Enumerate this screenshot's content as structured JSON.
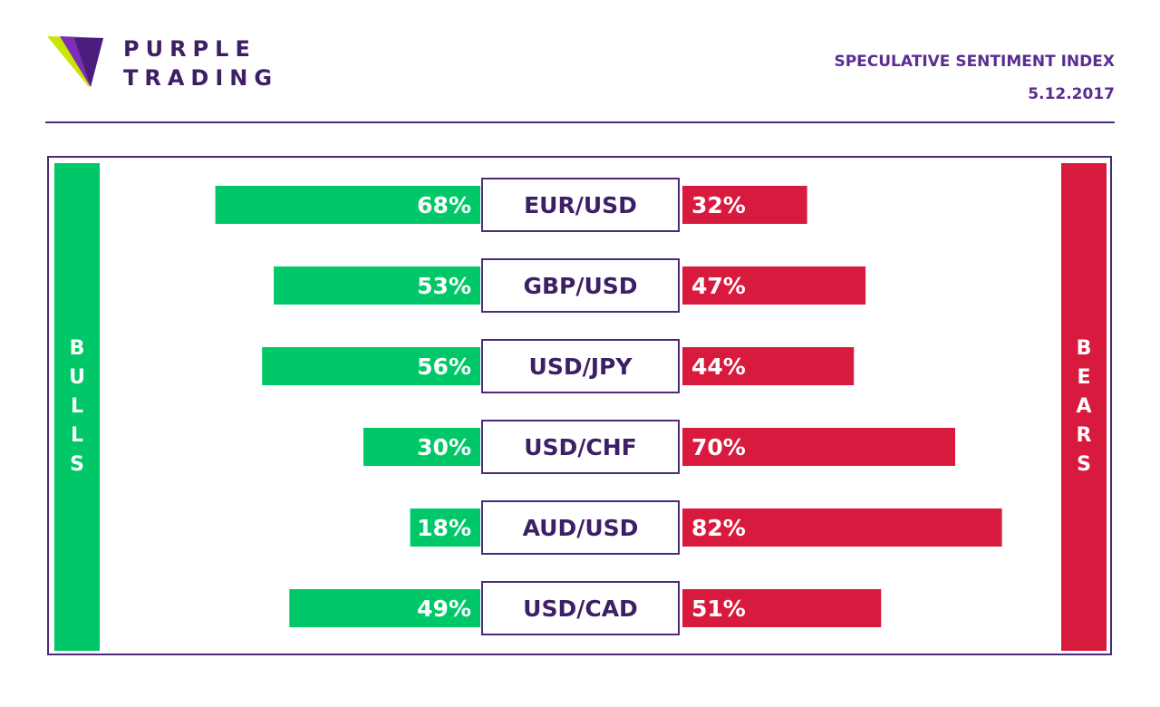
{
  "brand": {
    "line1": "PURPLE",
    "line2": "TRADING"
  },
  "header": {
    "title": "SPECULATIVE SENTIMENT INDEX",
    "date": "5.12.2017"
  },
  "labels": {
    "bulls": "BULLS",
    "bears": "BEARS"
  },
  "colors": {
    "bull": "#00c868",
    "bear": "#d91a3f",
    "accent": "#4b2a7a",
    "logo_green": "#c8e600"
  },
  "chart_data": {
    "type": "bar",
    "categories": [
      "EUR/USD",
      "GBP/USD",
      "USD/JPY",
      "USD/CHF",
      "AUD/USD",
      "USD/CAD"
    ],
    "series": [
      {
        "name": "BULLS",
        "values": [
          68,
          53,
          56,
          30,
          18,
          49
        ]
      },
      {
        "name": "BEARS",
        "values": [
          32,
          47,
          44,
          70,
          82,
          51
        ]
      }
    ],
    "value_suffix": "%",
    "xlim": [
      0,
      100
    ]
  }
}
